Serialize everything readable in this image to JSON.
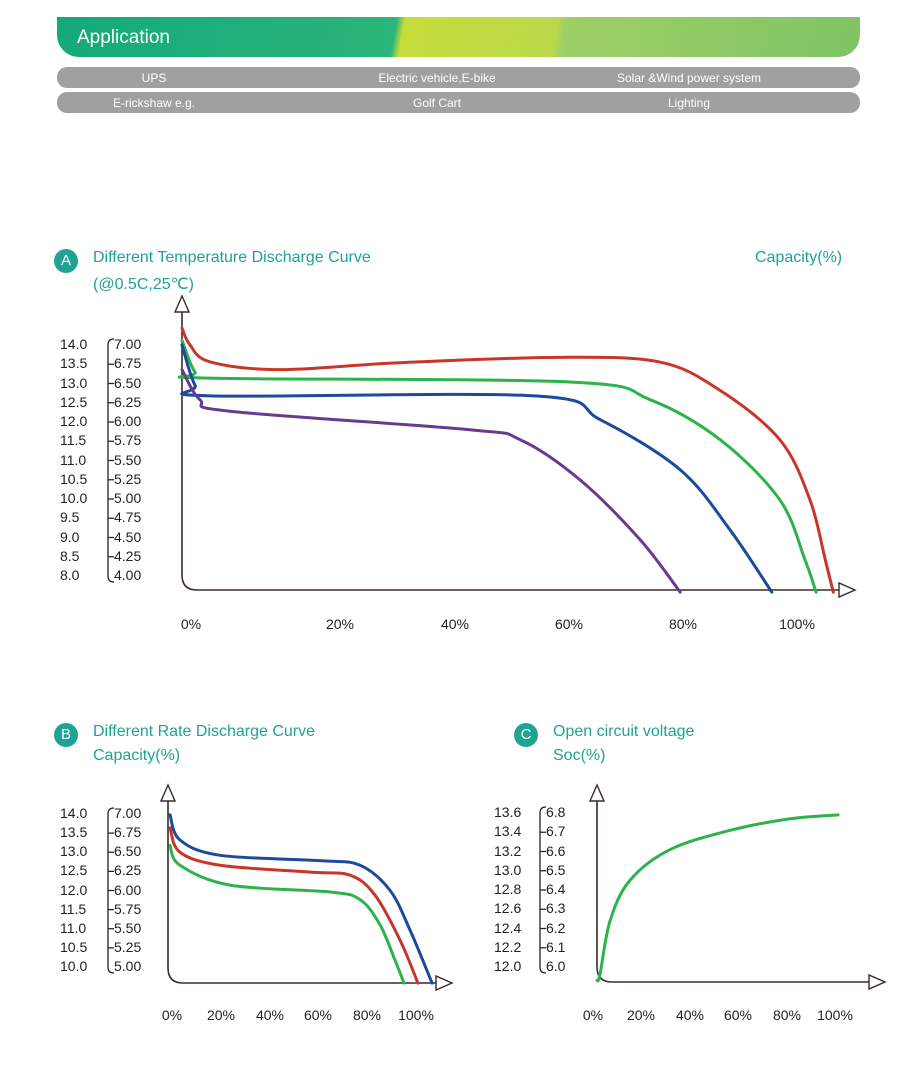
{
  "banner": {
    "title": "Application"
  },
  "applications": [
    [
      "UPS",
      "Electric vehicle,E-bike",
      "Solar &Wind power system"
    ],
    [
      "E-rickshaw e.g.",
      "Golf Cart",
      "Lighting"
    ]
  ],
  "colors": {
    "teal": "#1ea394",
    "red": "#c8362a",
    "green": "#2db34a",
    "blue": "#1c4a9c",
    "purple": "#6a3a8e",
    "axis": "#3a2a2a"
  },
  "chart_data": [
    {
      "id": "A",
      "type": "line",
      "badge": "A",
      "title": "Different Temperature Discharge Curve",
      "subtitle": "(@0.5C,25℃)",
      "xlabel": "Capacity(%)",
      "y_left_ticks": [
        "14.0",
        "13.5",
        "13.0",
        "12.5",
        "12.0",
        "11.5",
        "11.0",
        "10.5",
        "10.0",
        "9.5",
        "9.0",
        "8.5",
        "8.0"
      ],
      "y_right_ticks": [
        "7.00",
        "6.75",
        "6.50",
        "6.25",
        "6.00",
        "5.75",
        "5.50",
        "5.25",
        "5.00",
        "4.75",
        "4.50",
        "4.25",
        "4.00"
      ],
      "x_ticks": [
        "0%",
        "20%",
        "40%",
        "60%",
        "80%",
        "100%"
      ],
      "series": [
        {
          "color": "red",
          "points": [
            [
              0,
              7.22
            ],
            [
              1.3,
              7.0
            ],
            [
              4.6,
              6.78
            ],
            [
              16,
              6.68
            ],
            [
              35.3,
              6.77
            ],
            [
              61.3,
              6.84
            ],
            [
              77.6,
              6.78
            ],
            [
              87.3,
              6.42
            ],
            [
              97.2,
              5.77
            ],
            [
              102.1,
              4.99
            ],
            [
              104.6,
              4.21
            ],
            [
              105.9,
              3.79
            ]
          ]
        },
        {
          "color": "green",
          "points": [
            [
              0,
              7.06
            ],
            [
              2.1,
              6.65
            ],
            [
              4.6,
              6.57
            ],
            [
              63.1,
              6.52
            ],
            [
              76.1,
              6.29
            ],
            [
              87.5,
              5.77
            ],
            [
              97.2,
              4.99
            ],
            [
              101.3,
              4.21
            ],
            [
              103.1,
              3.79
            ]
          ]
        },
        {
          "color": "blue",
          "points": [
            [
              0,
              7.0
            ],
            [
              2.1,
              6.48
            ],
            [
              4.6,
              6.34
            ],
            [
              57.4,
              6.34
            ],
            [
              68,
              6.03
            ],
            [
              81,
              5.38
            ],
            [
              89.1,
              4.6
            ],
            [
              95.9,
              3.79
            ]
          ]
        },
        {
          "color": "purple",
          "points": [
            [
              0,
              6.68
            ],
            [
              2.9,
              6.29
            ],
            [
              7.8,
              6.14
            ],
            [
              46.8,
              5.9
            ],
            [
              55,
              5.77
            ],
            [
              64.7,
              5.25
            ],
            [
              74.5,
              4.47
            ],
            [
              81,
              3.79
            ]
          ]
        }
      ]
    },
    {
      "id": "B",
      "type": "line",
      "badge": "B",
      "title": "Different Rate Discharge Curve",
      "subtitle": "Capacity(%)",
      "y_left_ticks": [
        "14.0",
        "13.5",
        "13.0",
        "12.5",
        "12.0",
        "11.5",
        "11.0",
        "10.5",
        "10.0"
      ],
      "y_right_ticks": [
        "7.00",
        "6.75",
        "6.50",
        "6.25",
        "6.00",
        "5.75",
        "5.50",
        "5.25",
        "5.00"
      ],
      "x_ticks": [
        "0%",
        "20%",
        "40%",
        "60%",
        "80%",
        "100%"
      ],
      "series": [
        {
          "color": "blue",
          "points": [
            [
              0,
              6.99
            ],
            [
              4.1,
              6.66
            ],
            [
              20.5,
              6.46
            ],
            [
              61.5,
              6.39
            ],
            [
              77.9,
              6.33
            ],
            [
              90.2,
              6.0
            ],
            [
              98.4,
              5.48
            ],
            [
              107.4,
              4.79
            ]
          ]
        },
        {
          "color": "red",
          "points": [
            [
              0,
              6.82
            ],
            [
              4.1,
              6.5
            ],
            [
              20.5,
              6.33
            ],
            [
              57.4,
              6.24
            ],
            [
              73.8,
              6.2
            ],
            [
              84,
              5.94
            ],
            [
              94.3,
              5.35
            ],
            [
              101.6,
              4.79
            ]
          ]
        },
        {
          "color": "green",
          "points": [
            [
              0,
              6.59
            ],
            [
              4.1,
              6.33
            ],
            [
              24.6,
              6.07
            ],
            [
              65.6,
              5.98
            ],
            [
              77.9,
              5.88
            ],
            [
              86.1,
              5.55
            ],
            [
              92.2,
              5.09
            ],
            [
              95.9,
              4.79
            ]
          ]
        }
      ]
    },
    {
      "id": "C",
      "type": "line",
      "badge": "C",
      "title": "Open circuit voltage",
      "subtitle": "Soc(%)",
      "y_left_ticks": [
        "13.6",
        "13.4",
        "13.2",
        "13.0",
        "12.8",
        "12.6",
        "12.4",
        "12.2",
        "12.0"
      ],
      "y_right_ticks": [
        "6.8",
        "6.7",
        "6.6",
        "6.5",
        "6.4",
        "6.3",
        "6.2",
        "6.1",
        "6.0"
      ],
      "x_ticks": [
        "0%",
        "20%",
        "40%",
        "60%",
        "80%",
        "100%"
      ],
      "series": [
        {
          "color": "green",
          "points": [
            [
              0,
              5.93
            ],
            [
              1.2,
              5.96
            ],
            [
              5.4,
              6.24
            ],
            [
              13.6,
              6.45
            ],
            [
              30.2,
              6.61
            ],
            [
              55,
              6.71
            ],
            [
              79.8,
              6.77
            ],
            [
              99.6,
              6.79
            ]
          ]
        }
      ]
    }
  ]
}
